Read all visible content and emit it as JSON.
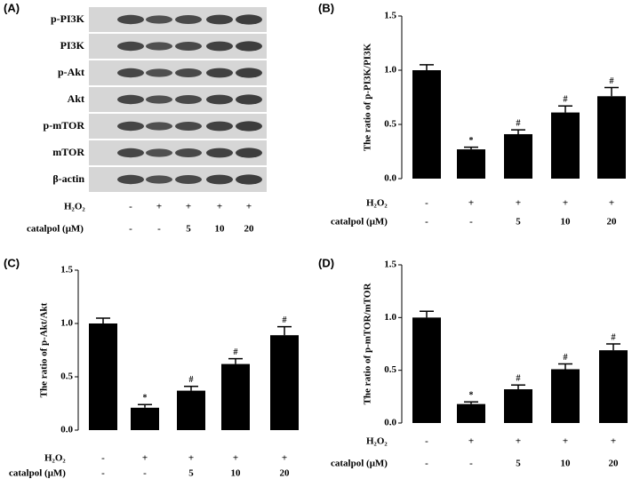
{
  "blot": {
    "panel": "(A)",
    "rows": [
      "p-PI3K",
      "PI3K",
      "p-Akt",
      "Akt",
      "p-mTOR",
      "mTOR",
      "β-actin"
    ],
    "treatments": [
      {
        "label": "H₂O₂",
        "values": [
          "-",
          "+",
          "+",
          "+",
          "+"
        ]
      },
      {
        "label": "catalpol (μM)",
        "values": [
          "-",
          "-",
          "5",
          "10",
          "20"
        ]
      }
    ]
  },
  "chart_data": [
    {
      "type": "bar",
      "panel": "(B)",
      "ylabel": "The ratio of p-PI3K/PI3K",
      "color": "#000000",
      "values": [
        1.0,
        0.27,
        0.41,
        0.61,
        0.76
      ],
      "errors": [
        0.05,
        0.02,
        0.04,
        0.06,
        0.08
      ],
      "annotations": [
        null,
        "*",
        "#",
        "#",
        "#"
      ],
      "ylim": [
        0,
        1.5
      ],
      "yticks": [
        {
          "value": 0,
          "label": "0.0"
        },
        {
          "value": 0.5,
          "label": "0.5"
        },
        {
          "value": 1,
          "label": "1.0"
        },
        {
          "value": 1.5,
          "label": "1.5"
        }
      ],
      "treatments": [
        {
          "label": "H₂O₂",
          "values": [
            "-",
            "+",
            "+",
            "+",
            "+"
          ]
        },
        {
          "label": "catalpol (μM)",
          "values": [
            "-",
            "-",
            "5",
            "10",
            "20"
          ]
        }
      ]
    },
    {
      "type": "bar",
      "panel": "(C)",
      "ylabel": "The ratio of p-Akt/Akt",
      "color": "#000000",
      "values": [
        1.0,
        0.21,
        0.37,
        0.62,
        0.89
      ],
      "errors": [
        0.05,
        0.03,
        0.04,
        0.05,
        0.08
      ],
      "annotations": [
        null,
        "*",
        "#",
        "#",
        "#"
      ],
      "ylim": [
        0,
        1.5
      ],
      "yticks": [
        {
          "value": 0,
          "label": "0.0"
        },
        {
          "value": 0.5,
          "label": "0.5"
        },
        {
          "value": 1,
          "label": "1.0"
        },
        {
          "value": 1.5,
          "label": "1.5"
        }
      ],
      "treatments": [
        {
          "label": "H₂O₂",
          "values": [
            "-",
            "+",
            "+",
            "+",
            "+"
          ]
        },
        {
          "label": "catalpol (μM)",
          "values": [
            "-",
            "-",
            "5",
            "10",
            "20"
          ]
        }
      ]
    },
    {
      "type": "bar",
      "panel": "(D)",
      "ylabel": "The ratio of p-mTOR/mTOR",
      "color": "#000000",
      "values": [
        1.0,
        0.18,
        0.32,
        0.51,
        0.69
      ],
      "errors": [
        0.06,
        0.02,
        0.04,
        0.05,
        0.06
      ],
      "annotations": [
        null,
        "*",
        "#",
        "#",
        "#"
      ],
      "ylim": [
        0,
        1.5
      ],
      "yticks": [
        {
          "value": 0,
          "label": "0.0"
        },
        {
          "value": 0.5,
          "label": "0.5"
        },
        {
          "value": 1,
          "label": "1.0"
        },
        {
          "value": 1.5,
          "label": "1.5"
        }
      ],
      "treatments": [
        {
          "label": "H₂O₂",
          "values": [
            "-",
            "+",
            "+",
            "+",
            "+"
          ]
        },
        {
          "label": "catalpol (μM)",
          "values": [
            "-",
            "-",
            "5",
            "10",
            "20"
          ]
        }
      ]
    }
  ]
}
